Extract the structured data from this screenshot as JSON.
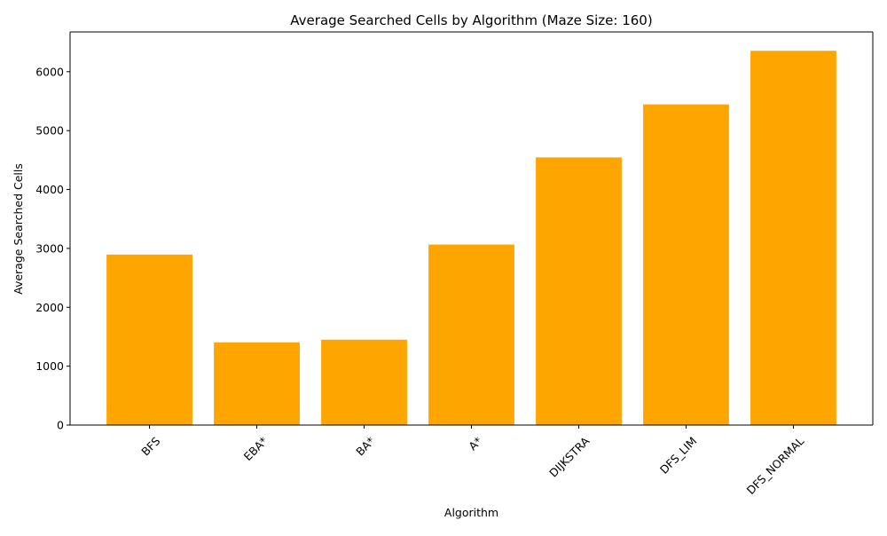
{
  "chart_data": {
    "type": "bar",
    "title": "Average Searched Cells by Algorithm (Maze Size: 160)",
    "xlabel": "Algorithm",
    "ylabel": "Average Searched Cells",
    "categories": [
      "BFS",
      "EBA*",
      "BA*",
      "A*",
      "DIJKSTRA",
      "DFS_LIM",
      "DFS_NORMAL"
    ],
    "values": [
      2895,
      1405,
      1450,
      3065,
      4545,
      5445,
      6355
    ],
    "ylim": [
      0,
      6675
    ],
    "yticks": [
      0,
      1000,
      2000,
      3000,
      4000,
      5000,
      6000
    ],
    "bar_color": "#ffa500",
    "grid": false,
    "legend": "none"
  }
}
